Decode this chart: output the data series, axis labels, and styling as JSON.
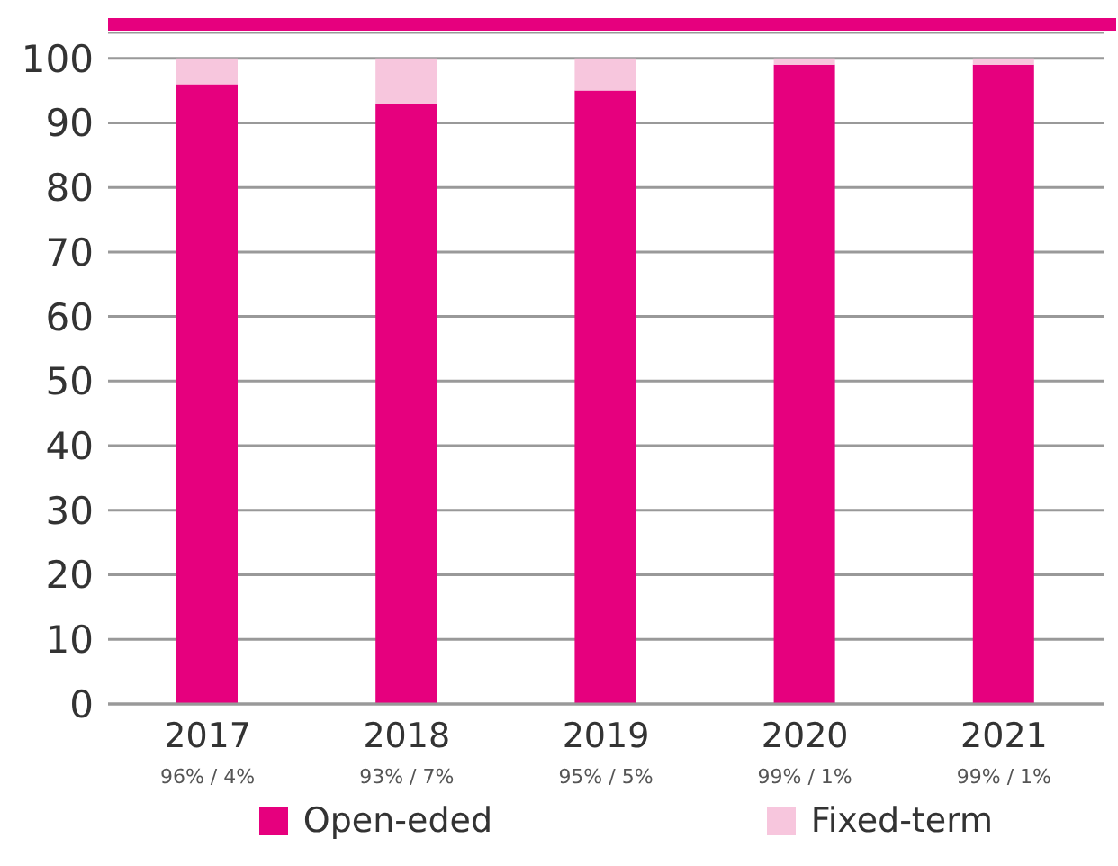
{
  "chart_data": {
    "type": "bar",
    "stacked": true,
    "categories": [
      "2017",
      "2018",
      "2019",
      "2020",
      "2021"
    ],
    "series": [
      {
        "name": "Open-eded",
        "color": "#e6007e",
        "values": [
          96,
          93,
          95,
          99,
          99
        ]
      },
      {
        "name": "Fixed-term",
        "color": "#f7c6dd",
        "values": [
          4,
          7,
          5,
          1,
          1
        ]
      }
    ],
    "ylim": [
      0,
      104
    ],
    "yticks": [
      0,
      10,
      20,
      30,
      40,
      50,
      60,
      70,
      80,
      90,
      100
    ],
    "grid": "y",
    "legend": "bottom",
    "annotations": [
      "96% / 4%",
      "93% / 7%",
      "95% / 5%",
      "99% / 1%",
      "99% / 1%"
    ]
  }
}
